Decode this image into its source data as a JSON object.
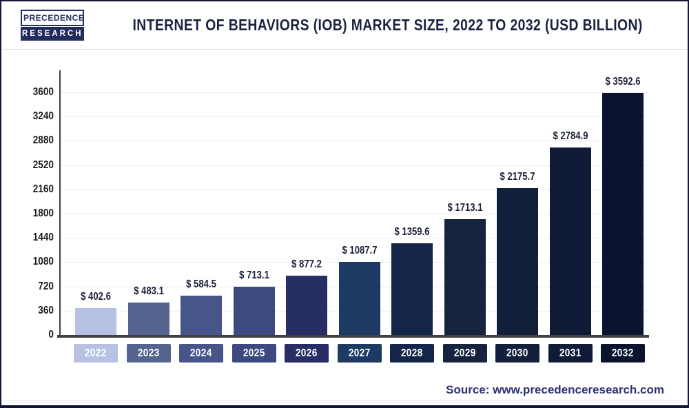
{
  "header": {
    "logo": {
      "line1": "PRECEDENCE",
      "line2": "RESEARCH"
    },
    "title": "INTERNET OF BEHAVIORS (IOB) MARKET SIZE, 2022 TO 2032 (USD BILLION)"
  },
  "chart_data": {
    "type": "bar",
    "title": "Internet of Behaviors (IoB) Market Size, 2022 to 2032 (USD Billion)",
    "categories": [
      "2022",
      "2023",
      "2024",
      "2025",
      "2026",
      "2027",
      "2028",
      "2029",
      "2030",
      "2031",
      "2032"
    ],
    "values": [
      402.6,
      483.1,
      584.5,
      713.1,
      877.2,
      1087.7,
      1359.6,
      1713.1,
      2175.7,
      2784.9,
      3592.6
    ],
    "value_labels": [
      "$ 402.6",
      "$ 483.1",
      "$ 584.5",
      "$ 713.1",
      "$ 877.2",
      "$ 1087.7",
      "$ 1359.6",
      "$ 1713.1",
      "$ 2175.7",
      "$ 2784.9",
      "$ 3592.6"
    ],
    "currency_prefix": "$",
    "xlabel": "",
    "ylabel": "",
    "ylim": [
      0,
      3600
    ],
    "yticks": [
      0,
      360,
      720,
      1080,
      1440,
      1800,
      2160,
      2520,
      2880,
      3240,
      3600
    ],
    "grid": true,
    "legend": false,
    "bar_colors": [
      "#b7c1e3",
      "#55638f",
      "#47558b",
      "#3c4a80",
      "#262e63",
      "#1d3a63",
      "#14254a",
      "#16233f",
      "#13203c",
      "#0f1b37",
      "#0a142f"
    ],
    "axis_color": "#3f3f48",
    "gridline_color": "#ebebef",
    "value_label_color": "#1a2036"
  },
  "footer": {
    "source": "Source: www.precedenceresearch.com"
  }
}
